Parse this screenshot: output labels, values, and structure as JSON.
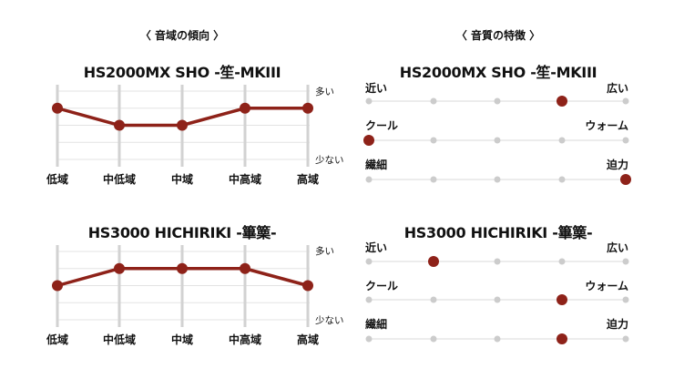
{
  "sections": {
    "left_title": "〈 音域の傾向 〉",
    "right_title": "〈 音質の特徴 〉"
  },
  "colors": {
    "accent": "#8e2219",
    "gridline": "#e3e3e3",
    "axis_bar": "#d2d2d2",
    "track": "#d9d9d9",
    "inactive_dot": "#cccccc"
  },
  "chart_data": [
    {
      "type": "line",
      "title": "HS2000MX SHO -笙-MKIII",
      "categories": [
        "低域",
        "中低域",
        "中域",
        "中高域",
        "高域"
      ],
      "values": [
        4,
        3,
        3,
        4,
        4
      ],
      "ylim": [
        1,
        5
      ],
      "y_top_label": "多い",
      "y_bottom_label": "少ない",
      "grid": true
    },
    {
      "type": "line",
      "title": "HS3000 HICHIRIKI -篳篥-",
      "categories": [
        "低域",
        "中低域",
        "中域",
        "中高域",
        "高域"
      ],
      "values": [
        3,
        4,
        4,
        4,
        3
      ],
      "ylim": [
        1,
        5
      ],
      "y_top_label": "多い",
      "y_bottom_label": "少ない",
      "grid": true
    },
    {
      "type": "scatter",
      "title": "HS2000MX SHO -笙-MKIII",
      "scale_steps": 5,
      "traits": [
        {
          "left": "近い",
          "right": "広い",
          "value": 4
        },
        {
          "left": "クール",
          "right": "ウォーム",
          "value": 1
        },
        {
          "left": "繊細",
          "right": "迫力",
          "value": 5
        }
      ]
    },
    {
      "type": "scatter",
      "title": "HS3000 HICHIRIKI -篳篥-",
      "scale_steps": 5,
      "traits": [
        {
          "left": "近い",
          "right": "広い",
          "value": 2
        },
        {
          "left": "クール",
          "right": "ウォーム",
          "value": 4
        },
        {
          "left": "繊細",
          "right": "迫力",
          "value": 4
        }
      ]
    }
  ]
}
